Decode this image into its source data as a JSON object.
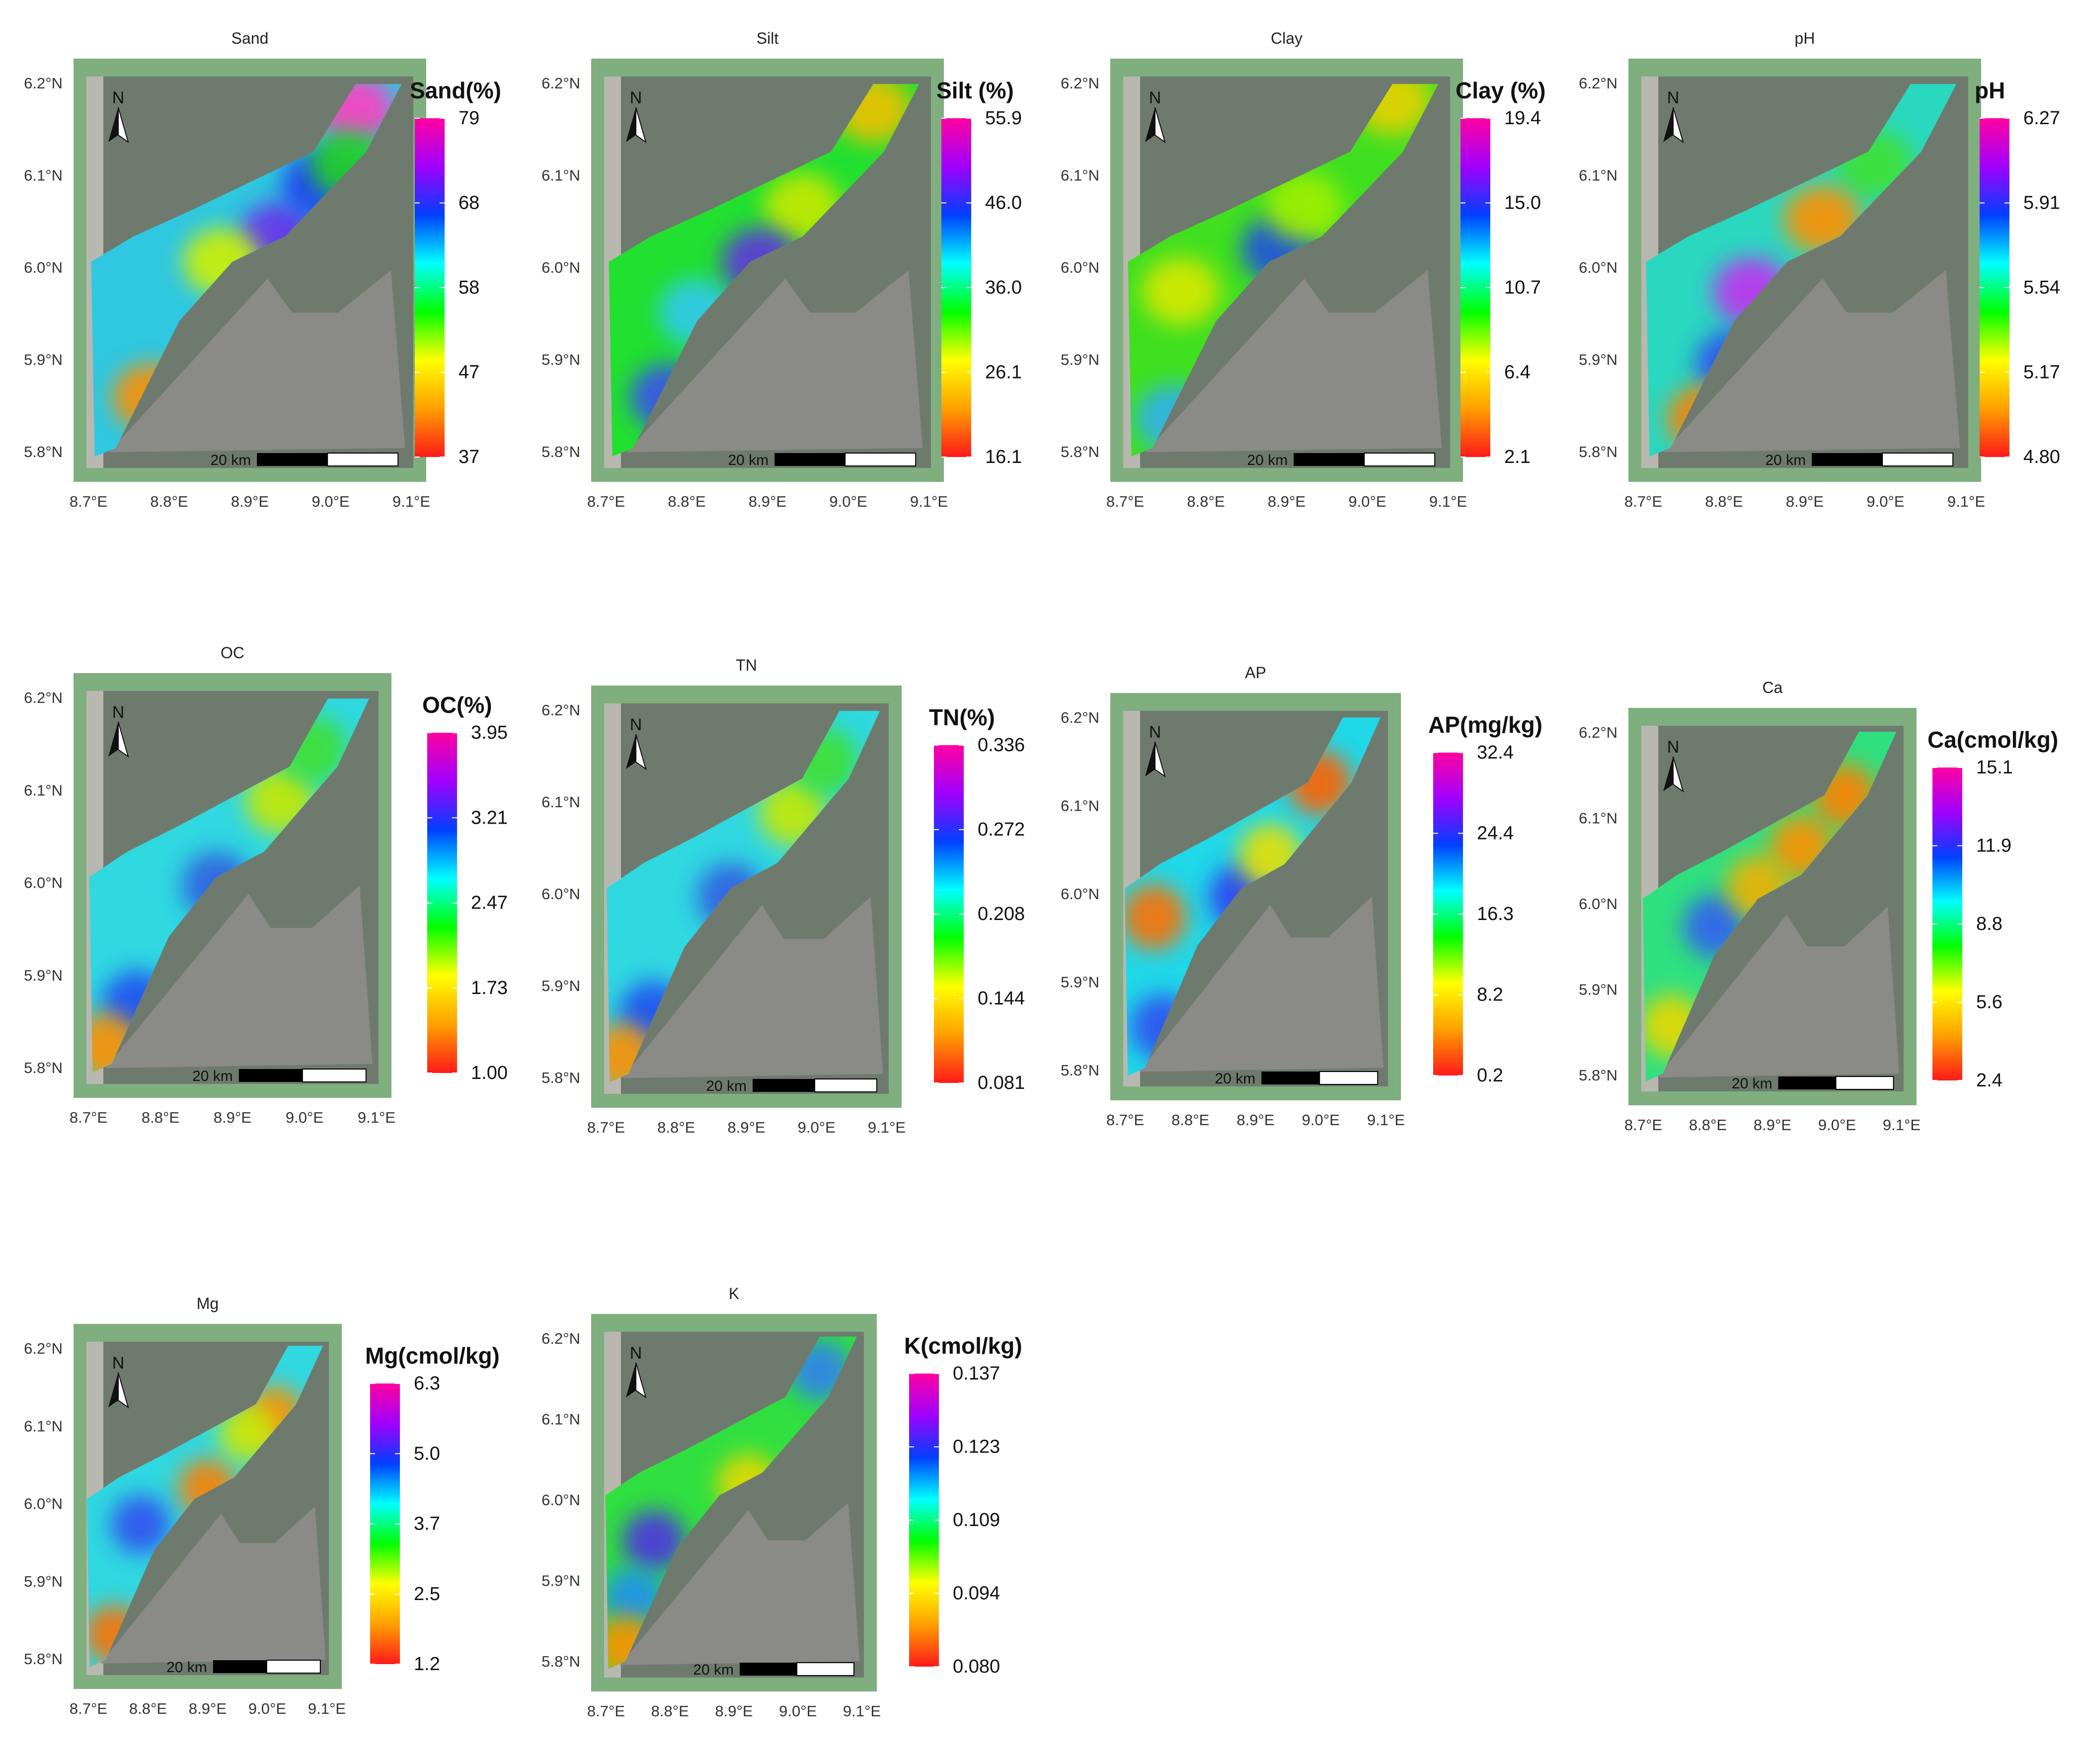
{
  "figure": {
    "panels": [
      {
        "title": "Sand",
        "legend_title": "Sand(%)",
        "legend_values": [
          "79",
          "68",
          "58",
          "47",
          "37"
        ],
        "y_ticks": [
          "6.2°N",
          "6.1°N",
          "6.0°N",
          "5.9°N",
          "5.8°N"
        ],
        "x_ticks": [
          "8.7°E",
          "8.8°E",
          "8.9°E",
          "9.0°E",
          "9.1°E"
        ],
        "scale_bar": "20 km",
        "north": "N",
        "base_color": "#2fc8e0",
        "hotspots": [
          [
            "#6a30e8",
            0.58,
            0.42
          ],
          [
            "#2040f0",
            0.7,
            0.3
          ],
          [
            "#ff9000",
            0.22,
            0.8
          ],
          [
            "#d0f000",
            0.42,
            0.48
          ],
          [
            "#ff40c0",
            0.8,
            0.12
          ],
          [
            "#20d020",
            0.78,
            0.25
          ]
        ]
      },
      {
        "title": "Silt",
        "legend_title": "Silt (%)",
        "legend_values": [
          "55.9",
          "46.0",
          "36.0",
          "26.1",
          "16.1"
        ],
        "y_ticks": [
          "6.2°N",
          "6.1°N",
          "6.0°N",
          "5.9°N",
          "5.8°N"
        ],
        "x_ticks": [
          "8.7°E",
          "8.8°E",
          "8.9°E",
          "9.0°E",
          "9.1°E"
        ],
        "scale_bar": "20 km",
        "north": "N",
        "base_color": "#22e030",
        "hotspots": [
          [
            "#3a50f0",
            0.22,
            0.8
          ],
          [
            "#30c8f0",
            0.3,
            0.6
          ],
          [
            "#c8e800",
            0.6,
            0.35
          ],
          [
            "#6030e0",
            0.48,
            0.48
          ],
          [
            "#f0c000",
            0.8,
            0.12
          ]
        ]
      },
      {
        "title": "Clay",
        "legend_title": "Clay (%)",
        "legend_values": [
          "19.4",
          "15.0",
          "10.7",
          "6.4",
          "2.1"
        ],
        "y_ticks": [
          "6.2°N",
          "6.1°N",
          "6.0°N",
          "5.9°N",
          "5.8°N"
        ],
        "x_ticks": [
          "8.7°E",
          "8.8°E",
          "8.9°E",
          "9.0°E",
          "9.1°E"
        ],
        "scale_bar": "20 km",
        "north": "N",
        "base_color": "#40e020",
        "hotspots": [
          [
            "#d8e800",
            0.2,
            0.55
          ],
          [
            "#e8d000",
            0.8,
            0.1
          ],
          [
            "#30b0f0",
            0.18,
            0.85
          ],
          [
            "#2050e0",
            0.48,
            0.45
          ],
          [
            "#a0f000",
            0.55,
            0.35
          ]
        ]
      },
      {
        "title": "pH",
        "legend_title": "pH",
        "legend_values": [
          "6.27",
          "5.91",
          "5.54",
          "5.17",
          "4.80"
        ],
        "y_ticks": [
          "6.2°N",
          "6.1°N",
          "6.0°N",
          "5.9°N",
          "5.8°N"
        ],
        "x_ticks": [
          "8.7°E",
          "8.8°E",
          "8.9°E",
          "9.0°E",
          "9.1°E"
        ],
        "scale_bar": "20 km",
        "north": "N",
        "base_color": "#2ad8c0",
        "hotspots": [
          [
            "#c030f0",
            0.35,
            0.55
          ],
          [
            "#3050f0",
            0.3,
            0.72
          ],
          [
            "#ff8000",
            0.22,
            0.85
          ],
          [
            "#40e030",
            0.7,
            0.25
          ],
          [
            "#ff9000",
            0.55,
            0.38
          ]
        ]
      },
      {
        "title": "OC",
        "legend_title": "OC(%)",
        "legend_values": [
          "3.95",
          "3.21",
          "2.47",
          "1.73",
          "1.00"
        ],
        "y_ticks": [
          "6.2°N",
          "6.1°N",
          "6.0°N",
          "5.9°N",
          "5.8°N"
        ],
        "x_ticks": [
          "8.7°E",
          "8.8°E",
          "8.9°E",
          "9.0°E",
          "9.1°E"
        ],
        "scale_bar": "20 km",
        "north": "N",
        "base_color": "#30d8e0",
        "hotspots": [
          [
            "#c8e800",
            0.65,
            0.3
          ],
          [
            "#40e030",
            0.75,
            0.18
          ],
          [
            "#2050f0",
            0.2,
            0.78
          ],
          [
            "#ff9000",
            0.1,
            0.88
          ],
          [
            "#3060e0",
            0.45,
            0.5
          ]
        ]
      },
      {
        "title": "TN",
        "legend_title": "TN(%)",
        "legend_values": [
          "0.336",
          "0.272",
          "0.208",
          "0.144",
          "0.081"
        ],
        "y_ticks": [
          "6.2°N",
          "6.1°N",
          "6.0°N",
          "5.9°N",
          "5.8°N"
        ],
        "x_ticks": [
          "8.7°E",
          "8.8°E",
          "8.9°E",
          "9.0°E",
          "9.1°E"
        ],
        "scale_bar": "20 km",
        "north": "N",
        "base_color": "#30d8e0",
        "hotspots": [
          [
            "#c8e800",
            0.65,
            0.3
          ],
          [
            "#40e030",
            0.75,
            0.18
          ],
          [
            "#2050f0",
            0.2,
            0.78
          ],
          [
            "#ff9000",
            0.1,
            0.88
          ],
          [
            "#3060e0",
            0.45,
            0.5
          ]
        ]
      },
      {
        "title": "AP",
        "legend_title": "AP(mg/kg)",
        "legend_values": [
          "32.4",
          "24.4",
          "16.3",
          "8.2",
          "0.2"
        ],
        "y_ticks": [
          "6.2°N",
          "6.1°N",
          "6.0°N",
          "5.9°N",
          "5.8°N"
        ],
        "x_ticks": [
          "8.7°E",
          "8.8°E",
          "8.9°E",
          "9.0°E",
          "9.1°E"
        ],
        "scale_bar": "20 km",
        "north": "N",
        "base_color": "#20d8e8",
        "hotspots": [
          [
            "#ff6000",
            0.72,
            0.22
          ],
          [
            "#ff7000",
            0.15,
            0.55
          ],
          [
            "#3040f0",
            0.45,
            0.5
          ],
          [
            "#3050f0",
            0.18,
            0.82
          ],
          [
            "#e8e000",
            0.55,
            0.4
          ]
        ]
      },
      {
        "title": "Ca",
        "legend_title": "Ca(cmol/kg)",
        "legend_values": [
          "15.1",
          "11.9",
          "8.8",
          "5.6",
          "2.4"
        ],
        "y_ticks": [
          "6.2°N",
          "6.1°N",
          "6.0°N",
          "5.9°N",
          "5.8°N"
        ],
        "x_ticks": [
          "8.7°E",
          "8.8°E",
          "8.9°E",
          "9.0°E",
          "9.1°E"
        ],
        "scale_bar": "20 km",
        "north": "N",
        "base_color": "#30e080",
        "hotspots": [
          [
            "#ff9000",
            0.6,
            0.35
          ],
          [
            "#ff8000",
            0.75,
            0.22
          ],
          [
            "#3060f0",
            0.3,
            0.55
          ],
          [
            "#e8d800",
            0.15,
            0.8
          ],
          [
            "#f0b000",
            0.45,
            0.45
          ]
        ]
      },
      {
        "title": "Mg",
        "legend_title": "Mg(cmol/kg)",
        "legend_values": [
          "6.3",
          "5.0",
          "3.7",
          "2.5",
          "1.2"
        ],
        "y_ticks": [
          "6.2°N",
          "6.1°N",
          "6.0°N",
          "5.9°N",
          "5.8°N"
        ],
        "x_ticks": [
          "8.7°E",
          "8.8°E",
          "8.9°E",
          "9.0°E",
          "9.1°E"
        ],
        "scale_bar": "20 km",
        "north": "N",
        "base_color": "#30d8e0",
        "hotspots": [
          [
            "#ff8000",
            0.5,
            0.45
          ],
          [
            "#ff9000",
            0.75,
            0.25
          ],
          [
            "#d0e800",
            0.65,
            0.3
          ],
          [
            "#ff7000",
            0.15,
            0.85
          ],
          [
            "#3050f0",
            0.25,
            0.55
          ]
        ]
      },
      {
        "title": "K",
        "legend_title": "K(cmol/kg)",
        "legend_values": [
          "0.137",
          "0.123",
          "0.109",
          "0.094",
          "0.080"
        ],
        "y_ticks": [
          "6.2°N",
          "6.1°N",
          "6.0°N",
          "5.9°N",
          "5.8°N"
        ],
        "x_ticks": [
          "8.7°E",
          "8.8°E",
          "8.9°E",
          "9.0°E",
          "9.1°E"
        ],
        "scale_bar": "20 km",
        "north": "N",
        "base_color": "#30e040",
        "hotspots": [
          [
            "#5030e0",
            0.22,
            0.6
          ],
          [
            "#2090f0",
            0.15,
            0.75
          ],
          [
            "#ff9000",
            0.12,
            0.88
          ],
          [
            "#3080f0",
            0.8,
            0.15
          ],
          [
            "#e8d800",
            0.55,
            0.45
          ]
        ]
      }
    ],
    "legend_gradient": [
      "#ff1a1a",
      "#ffa000",
      "#ffff00",
      "#00ff00",
      "#00ffff",
      "#0040ff",
      "#a000ff",
      "#ff00a0"
    ]
  }
}
